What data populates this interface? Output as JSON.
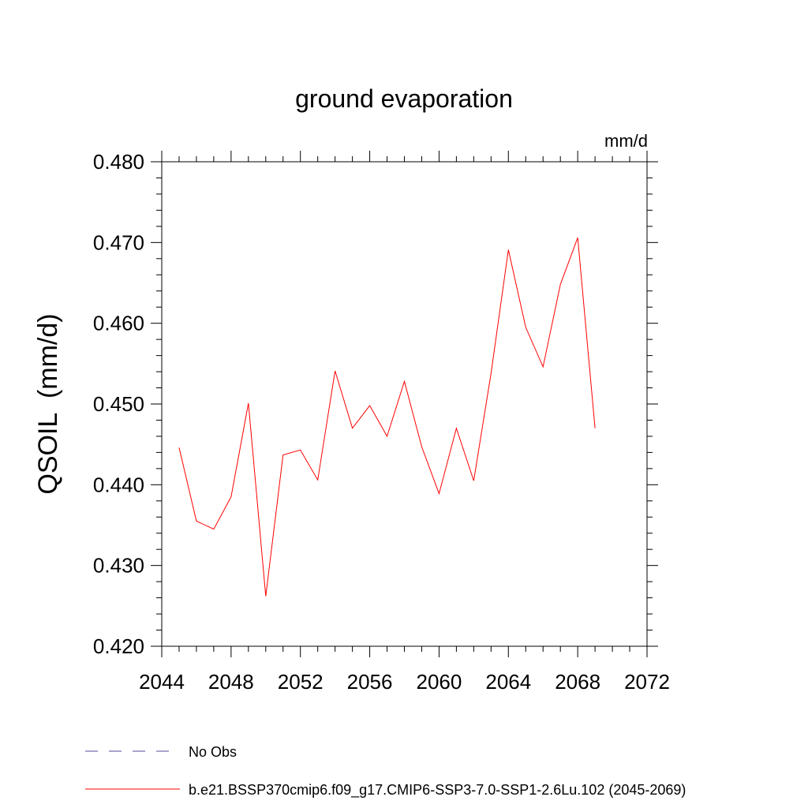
{
  "chart_data": {
    "type": "line",
    "title": "ground evaporation",
    "units_label": "mm/d",
    "ylabel": "QSOIL  (mm/d)",
    "xlabel": "",
    "xlim": [
      2044,
      2072
    ],
    "ylim": [
      0.42,
      0.48
    ],
    "x_ticks": [
      "2044",
      "2048",
      "2052",
      "2056",
      "2060",
      "2064",
      "2068",
      "2072"
    ],
    "y_ticks": [
      "0.420",
      "0.430",
      "0.440",
      "0.450",
      "0.460",
      "0.470",
      "0.480"
    ],
    "grid": false,
    "legend_position": "bottom-left",
    "series": [
      {
        "name": "b.e21.BSSP370cmip6.f09_g17.CMIP6-SSP3-7.0-SSP1-2.6Lu.102 (2045-2069)",
        "color": "#ff0000",
        "style": "solid",
        "x": [
          2045,
          2046,
          2047,
          2048,
          2049,
          2050,
          2051,
          2052,
          2053,
          2054,
          2055,
          2056,
          2057,
          2058,
          2059,
          2060,
          2061,
          2062,
          2063,
          2064,
          2065,
          2066,
          2067,
          2068,
          2069
        ],
        "values": [
          0.4446,
          0.4355,
          0.4345,
          0.4385,
          0.4501,
          0.4262,
          0.4437,
          0.4443,
          0.4406,
          0.4541,
          0.447,
          0.4498,
          0.446,
          0.4528,
          0.4447,
          0.4389,
          0.447,
          0.4405,
          0.4538,
          0.4691,
          0.4595,
          0.4546,
          0.4648,
          0.4706,
          0.447
        ]
      }
    ],
    "legend": [
      {
        "label": "No Obs",
        "color": "#5a4a9a",
        "style": "dashed"
      },
      {
        "label": "b.e21.BSSP370cmip6.f09_g17.CMIP6-SSP3-7.0-SSP1-2.6Lu.102 (2045-2069)",
        "color": "#ff0000",
        "style": "solid"
      }
    ]
  }
}
